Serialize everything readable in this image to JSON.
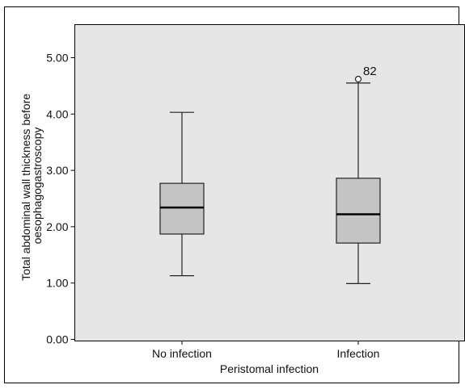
{
  "chart_data": {
    "type": "box",
    "title": "",
    "xlabel": "Peristomal infection",
    "ylabel": "Total abdominal wall thickness before oesophagogastroscopy",
    "ylabel_lines": [
      "Total abdominal wall thickness before",
      "oesophagogastroscopy"
    ],
    "ylim": [
      0,
      5.5
    ],
    "yticks": [
      "0.00",
      "1.00",
      "2.00",
      "3.00",
      "4.00",
      "5.00"
    ],
    "ytick_values": [
      0,
      1,
      2,
      3,
      4,
      5
    ],
    "grid": false,
    "categories": [
      "No infection",
      "Infection"
    ],
    "boxes": [
      {
        "category": "No infection",
        "min": 1.13,
        "q1": 1.87,
        "median": 2.34,
        "q3": 2.77,
        "max": 4.03,
        "outliers": []
      },
      {
        "category": "Infection",
        "min": 0.99,
        "q1": 1.71,
        "median": 2.22,
        "q3": 2.86,
        "max": 4.55,
        "outliers": [
          {
            "value": 4.62,
            "label": "82"
          }
        ]
      }
    ],
    "colors": {
      "plot_background": "#e6e6e6",
      "box_fill": "#c4c4c4",
      "median_line": "#000000"
    }
  }
}
